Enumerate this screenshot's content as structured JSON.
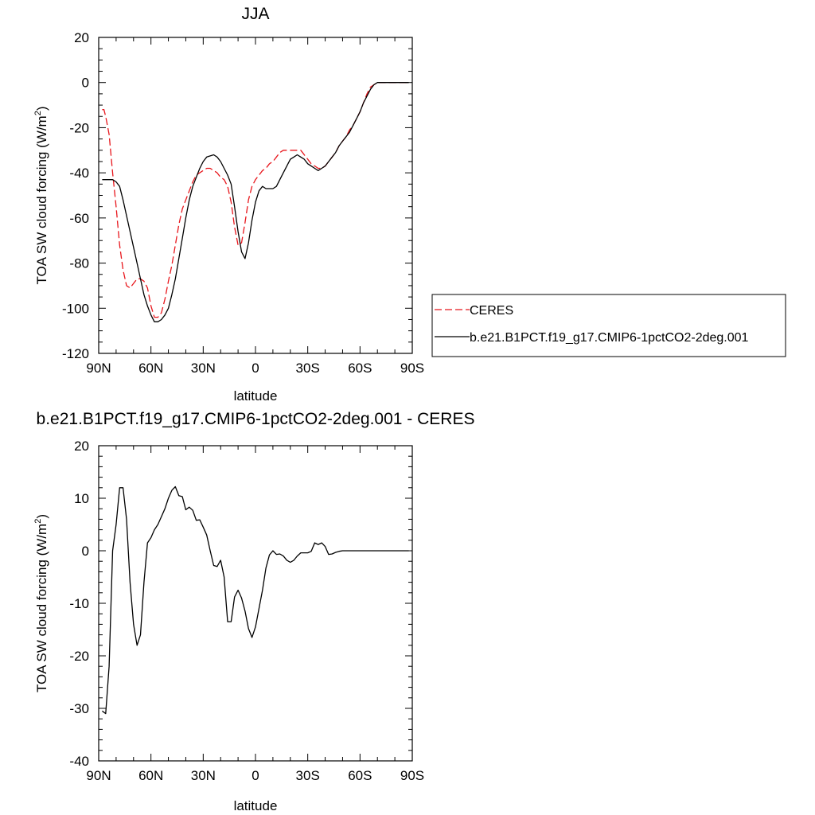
{
  "chart_data": [
    {
      "type": "line",
      "title": "JJA",
      "xlabel": "latitude",
      "ylabel": "TOA SW cloud forcing (W/m",
      "ylabel_sup": "2",
      "ylabel_end": ")",
      "xlim": [
        90,
        -90
      ],
      "ylim": [
        -120,
        20
      ],
      "xticks": [
        90,
        60,
        30,
        0,
        -30,
        -60,
        -90
      ],
      "xtick_labels": [
        "90N",
        "60N",
        "30N",
        "0",
        "30S",
        "60S",
        "90S"
      ],
      "yticks": [
        20,
        0,
        -20,
        -40,
        -60,
        -80,
        -100,
        -120
      ],
      "ytick_labels": [
        "20",
        "0",
        "-20",
        "-40",
        "-60",
        "-80",
        "-100",
        "-120"
      ],
      "legend_position": "right",
      "series": [
        {
          "name": "CERES",
          "color": "#e8161c",
          "dash": "dashed",
          "x": [
            88,
            87,
            86,
            84,
            82,
            80,
            78,
            76,
            74,
            72,
            70,
            68,
            66,
            64,
            62,
            60,
            58,
            56,
            54,
            52,
            50,
            48,
            46,
            44,
            42,
            40,
            38,
            36,
            34,
            32,
            30,
            28,
            26,
            24,
            22,
            20,
            18,
            16,
            14,
            12,
            10,
            8,
            6,
            4,
            2,
            0,
            -2,
            -4,
            -6,
            -8,
            -10,
            -12,
            -14,
            -16,
            -18,
            -20,
            -22,
            -24,
            -26,
            -28,
            -30,
            -32,
            -34,
            -36,
            -38,
            -40,
            -42,
            -44,
            -46,
            -48,
            -50,
            -52,
            -54,
            -56,
            -58,
            -60,
            -62,
            -64,
            -66,
            -68,
            -70,
            -75,
            -80,
            -85,
            -88
          ],
          "y": [
            -12,
            -12,
            -15,
            -23,
            -40,
            -55,
            -72,
            -83,
            -90,
            -91,
            -89,
            -87,
            -87,
            -88,
            -91,
            -99,
            -104,
            -104,
            -102,
            -96,
            -88,
            -81,
            -72,
            -63,
            -56,
            -52,
            -48,
            -44,
            -41,
            -40,
            -39,
            -38,
            -38,
            -39,
            -40,
            -42,
            -43,
            -46,
            -53,
            -64,
            -72,
            -71,
            -62,
            -52,
            -46,
            -43,
            -41,
            -39,
            -38,
            -36,
            -35,
            -33,
            -31,
            -30,
            -30,
            -30,
            -30,
            -30,
            -30,
            -32,
            -34,
            -36,
            -37,
            -38,
            -38,
            -37,
            -35,
            -33,
            -31,
            -28,
            -26,
            -24,
            -21,
            -19,
            -16,
            -13,
            -9,
            -5,
            -2,
            -1,
            0,
            0,
            0,
            0,
            0
          ]
        },
        {
          "name": "b.e21.B1PCT.f19_g17.CMIP6-1pctCO2-2deg.001",
          "color": "#000000",
          "dash": "solid",
          "x": [
            88,
            86,
            84,
            82,
            80,
            78,
            76,
            74,
            72,
            70,
            68,
            66,
            64,
            62,
            60,
            58,
            56,
            54,
            52,
            50,
            48,
            46,
            44,
            42,
            40,
            38,
            36,
            34,
            32,
            30,
            28,
            26,
            24,
            22,
            20,
            18,
            16,
            14,
            12,
            10,
            8,
            6,
            4,
            2,
            0,
            -2,
            -4,
            -6,
            -8,
            -10,
            -12,
            -14,
            -16,
            -18,
            -20,
            -22,
            -24,
            -26,
            -28,
            -30,
            -32,
            -34,
            -36,
            -38,
            -40,
            -42,
            -44,
            -46,
            -48,
            -50,
            -52,
            -54,
            -56,
            -58,
            -60,
            -62,
            -64,
            -66,
            -68,
            -70,
            -75,
            -80,
            -85,
            -88
          ],
          "y": [
            -43,
            -43,
            -43,
            -43,
            -44,
            -46,
            -52,
            -59,
            -66,
            -73,
            -80,
            -87,
            -94,
            -99,
            -103,
            -106,
            -106,
            -105,
            -103,
            -100,
            -94,
            -87,
            -78,
            -69,
            -60,
            -52,
            -46,
            -42,
            -38,
            -35,
            -33,
            -32.5,
            -32,
            -33,
            -35,
            -38,
            -41,
            -45,
            -55,
            -66,
            -75,
            -78,
            -71,
            -61,
            -53,
            -48,
            -46,
            -47,
            -47,
            -47,
            -46,
            -43,
            -40,
            -37,
            -34,
            -33,
            -32,
            -33,
            -34,
            -36,
            -37,
            -38,
            -39,
            -38,
            -37,
            -35,
            -33,
            -31,
            -28,
            -26,
            -24,
            -22,
            -19,
            -16,
            -13,
            -9,
            -6,
            -3,
            -1,
            0,
            0,
            0,
            0,
            0
          ]
        }
      ]
    },
    {
      "type": "line",
      "title": "b.e21.B1PCT.f19_g17.CMIP6-1pctCO2-2deg.001 - CERES",
      "xlabel": "latitude",
      "ylabel": "TOA SW cloud forcing (W/m",
      "ylabel_sup": "2",
      "ylabel_end": ")",
      "xlim": [
        90,
        -90
      ],
      "ylim": [
        -40,
        20
      ],
      "xticks": [
        90,
        60,
        30,
        0,
        -30,
        -60,
        -90
      ],
      "xtick_labels": [
        "90N",
        "60N",
        "30N",
        "0",
        "30S",
        "60S",
        "90S"
      ],
      "yticks": [
        20,
        10,
        0,
        -10,
        -20,
        -30,
        -40
      ],
      "ytick_labels": [
        "20",
        "10",
        "0",
        "-10",
        "-20",
        "-30",
        "-40"
      ],
      "series": [
        {
          "color": "#000000",
          "dash": "solid",
          "x": [
            88,
            86,
            84,
            82,
            80,
            78,
            76,
            74,
            72,
            70,
            68,
            66,
            64,
            62,
            60,
            58,
            56,
            54,
            52,
            50,
            48,
            46,
            44,
            42,
            40,
            38,
            36,
            34,
            32,
            30,
            28,
            26,
            24,
            22,
            20,
            18,
            16,
            14,
            12,
            10,
            8,
            6,
            4,
            2,
            0,
            -2,
            -4,
            -6,
            -8,
            -10,
            -12,
            -14,
            -16,
            -18,
            -20,
            -22,
            -24,
            -26,
            -28,
            -30,
            -32,
            -34,
            -36,
            -38,
            -40,
            -42,
            -44,
            -46,
            -48,
            -50,
            -52,
            -54,
            -56,
            -58,
            -60,
            -62,
            -64,
            -66,
            -68,
            -70,
            -72,
            -75,
            -80,
            -85,
            -88
          ],
          "y": [
            -30.5,
            -31,
            -22,
            0,
            5,
            12,
            12,
            6,
            -6,
            -14,
            -18,
            -16,
            -6,
            1.5,
            2.5,
            4,
            5,
            6.5,
            8,
            10,
            11.5,
            12.2,
            10.5,
            10.3,
            7.8,
            8.3,
            7.7,
            5.8,
            5.9,
            4.5,
            3,
            0,
            -2.8,
            -3,
            -1.8,
            -5,
            -13.5,
            -13.5,
            -8.8,
            -7.5,
            -9,
            -11.5,
            -14.8,
            -16.5,
            -14.5,
            -11,
            -7.5,
            -3.3,
            -0.8,
            0,
            -0.7,
            -0.6,
            -1,
            -1.8,
            -2.2,
            -1.8,
            -1,
            -0.4,
            -0.4,
            -0.4,
            -0.1,
            1.5,
            1.2,
            1.5,
            0.8,
            -0.7,
            -0.6,
            -0.3,
            -0.1,
            0,
            0,
            0,
            0,
            0,
            0,
            0,
            0,
            0,
            0,
            0,
            0,
            0,
            0,
            0,
            0
          ]
        }
      ]
    }
  ]
}
